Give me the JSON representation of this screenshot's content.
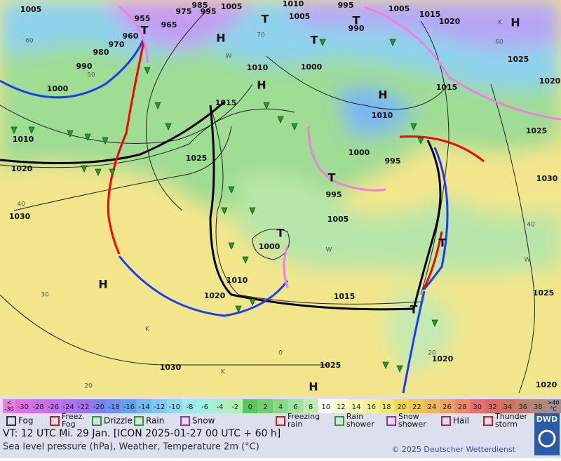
{
  "map": {
    "pressure_labels": [
      "1005",
      "955",
      "975",
      "985",
      "995",
      "1005",
      "1010",
      "1005",
      "995",
      "990",
      "1005",
      "1015",
      "1020",
      "960",
      "965",
      "970",
      "980",
      "990",
      "1000",
      "1010",
      "1000",
      "1015",
      "1010",
      "1015",
      "1025",
      "1020",
      "1010",
      "1020",
      "1025",
      "1000",
      "995",
      "995",
      "1025",
      "1030",
      "1030",
      "1005",
      "1000",
      "1010",
      "1020",
      "1015",
      "1025",
      "1030",
      "1025",
      "1020",
      "1020"
    ],
    "centers": [
      "T",
      "H",
      "T",
      "T",
      "H",
      "H",
      "H",
      "T",
      "T",
      "H",
      "T",
      "T",
      "H",
      "T"
    ],
    "grid_labels": [
      "60",
      "50",
      "70",
      "40",
      "30",
      "20",
      "0",
      "20",
      "60",
      "40",
      "W",
      "W",
      "W",
      "K",
      "K",
      "K"
    ]
  },
  "legend": {
    "scale_low": [
      "<",
      "-30"
    ],
    "scale": [
      {
        "label": "-30",
        "color": "#e070e0"
      },
      {
        "label": "-28",
        "color": "#d070e8"
      },
      {
        "label": "-26",
        "color": "#c070f0"
      },
      {
        "label": "-24",
        "color": "#b070f0"
      },
      {
        "label": "-22",
        "color": "#a070f0"
      },
      {
        "label": "-20",
        "color": "#8080f0"
      },
      {
        "label": "-18",
        "color": "#7090f0"
      },
      {
        "label": "-16",
        "color": "#60a0f0"
      },
      {
        "label": "-14",
        "color": "#70b8f0"
      },
      {
        "label": "-12",
        "color": "#80c8f0"
      },
      {
        "label": "-10",
        "color": "#90d8f0"
      },
      {
        "label": "-8",
        "color": "#a0e8f0"
      },
      {
        "label": "-6",
        "color": "#a0f0e0"
      },
      {
        "label": "-4",
        "color": "#a8f0c8"
      },
      {
        "label": "-2",
        "color": "#b0f0b0"
      },
      {
        "label": "0",
        "color": "#58c858"
      },
      {
        "label": "2",
        "color": "#70d070"
      },
      {
        "label": "4",
        "color": "#88d888"
      },
      {
        "label": "6",
        "color": "#a0e0a0"
      },
      {
        "label": "8",
        "color": "#c0ecb0"
      },
      {
        "label": "10",
        "color": "#f8f8f8"
      },
      {
        "label": "12",
        "color": "#fcfcd0"
      },
      {
        "label": "14",
        "color": "#f8f4b0"
      },
      {
        "label": "16",
        "color": "#f4f090"
      },
      {
        "label": "18",
        "color": "#f0e870"
      },
      {
        "label": "20",
        "color": "#f0d850"
      },
      {
        "label": "22",
        "color": "#f0c850"
      },
      {
        "label": "24",
        "color": "#f0b850"
      },
      {
        "label": "26",
        "color": "#f0a060"
      },
      {
        "label": "28",
        "color": "#f08868"
      },
      {
        "label": "30",
        "color": "#e87070"
      },
      {
        "label": "32",
        "color": "#e06868"
      },
      {
        "label": "34",
        "color": "#d07060"
      },
      {
        "label": "36",
        "color": "#c08070"
      },
      {
        "label": "38",
        "color": "#b08878"
      }
    ],
    "scale_high": [
      ">40",
      "°C"
    ],
    "weather": [
      {
        "lines": [
          "Fog"
        ]
      },
      {
        "lines": [
          "Freez.",
          "Fog"
        ]
      },
      {
        "lines": [
          "Drizzle"
        ]
      },
      {
        "lines": [
          "Rain"
        ]
      },
      {
        "lines": [
          "Snow"
        ]
      },
      {
        "lines": [
          "Freezing",
          "rain"
        ]
      },
      {
        "lines": [
          "Rain",
          "shower"
        ]
      },
      {
        "lines": [
          "Snow",
          "shower"
        ]
      },
      {
        "lines": [
          "Hail"
        ]
      },
      {
        "lines": [
          "Thunder",
          "storm"
        ]
      }
    ]
  },
  "footer": {
    "valid_time": "VT: 12 UTC Mi.  29 Jan. [ICON 2025-01-27  00 UTC + 60 h]",
    "description": "Sea level pressure (hPa), Weather, Temperature 2m (°C)",
    "copyright": "© 2025 Deutscher Wetterdienst",
    "logo": "DWD"
  }
}
